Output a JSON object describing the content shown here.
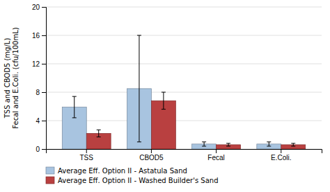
{
  "chart_data": {
    "type": "bar",
    "categories": [
      "TSS",
      "CBOD5",
      "Fecal",
      "E.Coli."
    ],
    "series": [
      {
        "name": "Average Eff. Option II - Astatula Sand",
        "color": "#a8c4e0",
        "values": [
          5.9,
          8.5,
          0.7,
          0.7
        ],
        "errors": [
          1.5,
          7.5,
          0.3,
          0.3
        ]
      },
      {
        "name": "Average Eff. Option II - Washed Builder's Sand",
        "color": "#b94040",
        "values": [
          2.2,
          6.8,
          0.6,
          0.6
        ],
        "errors": [
          0.5,
          1.2,
          0.2,
          0.2
        ]
      }
    ],
    "ylabel": [
      "TSS and CBOD5 (mg/L)",
      "Fecal and E.Coli. (cfu/100mL)"
    ],
    "ylim": [
      0,
      20
    ],
    "yticks": [
      0,
      4,
      8,
      12,
      16,
      20
    ],
    "grid": true,
    "legend": "bottom"
  }
}
